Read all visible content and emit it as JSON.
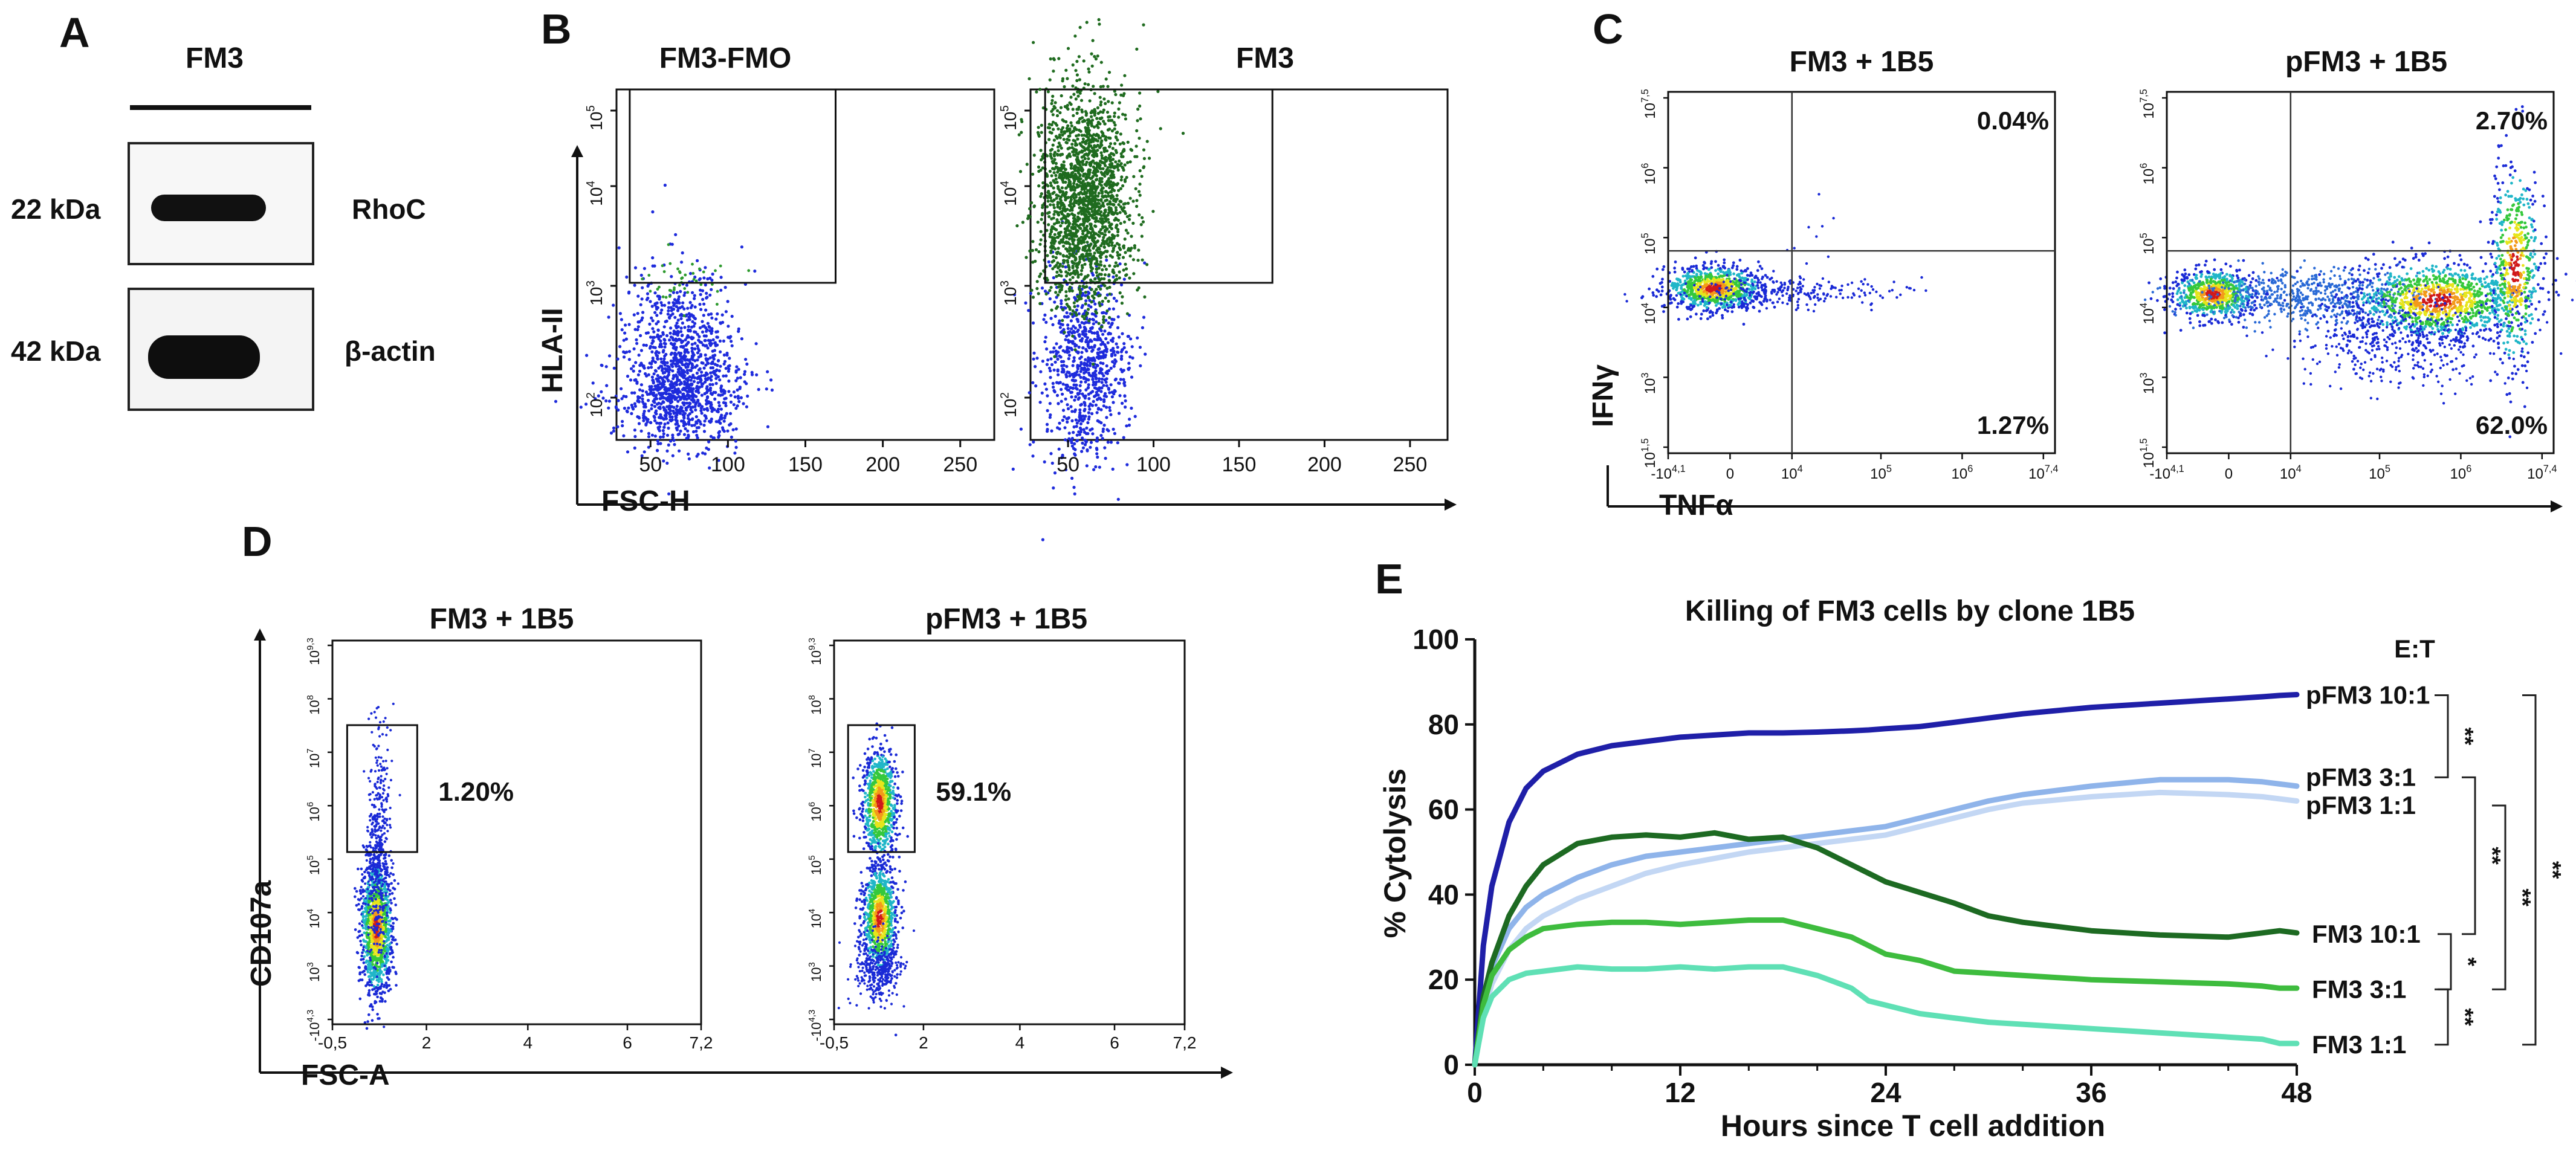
{
  "panels": {
    "A": {
      "letter": "A",
      "sample": "FM3",
      "rows": [
        {
          "size": "22 kDa",
          "protein": "RhoC"
        },
        {
          "size": "42 kDa",
          "protein": "β-actin"
        }
      ]
    },
    "B": {
      "letter": "B",
      "plots": [
        {
          "title": "FM3-FMO"
        },
        {
          "title": "FM3"
        }
      ],
      "ylabel": "HLA-II",
      "xlabel": "FSC-H",
      "xticks": [
        "50",
        "100",
        "150",
        "200",
        "250"
      ],
      "ytick_base": "10",
      "ytick_exps": [
        "2",
        "3",
        "4",
        "5"
      ]
    },
    "C": {
      "letter": "C",
      "plots": [
        {
          "title": "FM3 + 1B5",
          "q_upper_right": "0.04%",
          "q_lower_right": "1.27%"
        },
        {
          "title": "pFM3  + 1B5",
          "q_upper_right": "2.70%",
          "q_lower_right": "62.0%"
        }
      ],
      "ylabel": "IFNγ",
      "xlabel": "TNFα",
      "yticks": [
        {
          "base": "10",
          "exp": "7,5"
        },
        {
          "base": "10",
          "exp": "6"
        },
        {
          "base": "10",
          "exp": "5"
        },
        {
          "base": "10",
          "exp": "4"
        },
        {
          "base": "10",
          "exp": "3"
        },
        {
          "base": "10",
          "exp": "1,5"
        }
      ],
      "xticks": [
        {
          "base": "-10",
          "exp": "4,1"
        },
        {
          "base": "0",
          "exp": ""
        },
        {
          "base": "10",
          "exp": "4"
        },
        {
          "base": "10",
          "exp": "5"
        },
        {
          "base": "10",
          "exp": "6"
        },
        {
          "base": "10",
          "exp": "7,4"
        }
      ]
    },
    "D": {
      "letter": "D",
      "plots": [
        {
          "title": "FM3 + 1B5",
          "gate_pct": "1.20%"
        },
        {
          "title": "pFM3  + 1B5",
          "gate_pct": "59.1%"
        }
      ],
      "ylabel": "CD107a",
      "xlabel": "FSC-A",
      "xticks": [
        "-0,5",
        "2",
        "4",
        "6",
        "7,2"
      ],
      "yticks": [
        {
          "base": "10",
          "exp": "9,3"
        },
        {
          "base": "10",
          "exp": "8"
        },
        {
          "base": "10",
          "exp": "7"
        },
        {
          "base": "10",
          "exp": "6"
        },
        {
          "base": "10",
          "exp": "5"
        },
        {
          "base": "10",
          "exp": "4"
        },
        {
          "base": "10",
          "exp": "3"
        },
        {
          "base": "-10",
          "exp": "4,3"
        }
      ]
    },
    "E": {
      "letter": "E",
      "et_label": "E:T",
      "significance": [
        {
          "pair": [
            "pFM3 10:1",
            "pFM3 3:1"
          ],
          "mark": "**"
        },
        {
          "pair": [
            "pFM3 3:1",
            "FM3 10:1"
          ],
          "mark": "**"
        },
        {
          "pair": [
            "pFM3 1:1",
            "FM3 3:1"
          ],
          "mark": "**"
        },
        {
          "pair": [
            "pFM3 10:1",
            "FM3 1:1"
          ],
          "mark": "**"
        },
        {
          "pair": [
            "FM3 10:1",
            "FM3 3:1"
          ],
          "mark": "*"
        },
        {
          "pair": [
            "FM3 3:1",
            "FM3 1:1"
          ],
          "mark": "**"
        }
      ]
    }
  },
  "chart_data": {
    "type": "line",
    "title": "Killing of FM3 cells by clone 1B5",
    "xlabel": "Hours since T cell addition",
    "ylabel": "% Cytolysis",
    "xlim": [
      0,
      48
    ],
    "ylim": [
      0,
      100
    ],
    "xticks": [
      0,
      12,
      24,
      36,
      48
    ],
    "yticks": [
      0,
      20,
      40,
      60,
      80,
      100
    ],
    "x": [
      0,
      0.5,
      1,
      2,
      3,
      4,
      6,
      8,
      10,
      12,
      14,
      16,
      18,
      20,
      22,
      23,
      24,
      26,
      28,
      30,
      32,
      36,
      40,
      44,
      46,
      47,
      48
    ],
    "series": [
      {
        "name": "pFM3 10:1",
        "label": "pFM3  10:1",
        "color": "#1f1fa8",
        "values": [
          0,
          28,
          42,
          57,
          65,
          69,
          73,
          75,
          76,
          77,
          77.5,
          78,
          78,
          78.2,
          78.5,
          78.7,
          79,
          79.5,
          80.5,
          81.5,
          82.5,
          84,
          85,
          86,
          86.5,
          86.8,
          87
        ]
      },
      {
        "name": "pFM3 3:1",
        "label": "pFM3  3:1",
        "color": "#8fb4ea",
        "values": [
          0,
          15,
          23,
          32,
          37,
          40,
          44,
          47,
          49,
          50,
          51,
          52,
          53,
          54,
          55,
          55.5,
          56,
          58,
          60,
          62,
          63.5,
          65.5,
          67,
          67,
          66.5,
          66,
          65.5
        ]
      },
      {
        "name": "pFM3 1:1",
        "label": "pFM3  1:1",
        "color": "#c3d7f4",
        "values": [
          0,
          12,
          19,
          27,
          32,
          35,
          39,
          42,
          45,
          47,
          48.5,
          50,
          51,
          52,
          53,
          53.5,
          54,
          56,
          58,
          60,
          61.5,
          63,
          64,
          63.5,
          63,
          62.5,
          62
        ]
      },
      {
        "name": "FM3 10:1",
        "label": "FM3  10:1",
        "color": "#1d6a22",
        "values": [
          0,
          16,
          24,
          35,
          42,
          47,
          52,
          53.5,
          54,
          53.5,
          54.5,
          53,
          53.5,
          51,
          47,
          45,
          43,
          40.5,
          38,
          35,
          33.5,
          31.5,
          30.5,
          30,
          31,
          31.5,
          31
        ]
      },
      {
        "name": "FM3 3:1",
        "label": "FM3  3:1",
        "color": "#3ebc3e",
        "values": [
          0,
          14,
          21,
          27,
          30,
          32,
          33,
          33.5,
          33.5,
          33,
          33.5,
          34,
          34,
          32,
          30,
          28,
          26,
          24.5,
          22,
          21.5,
          21,
          20,
          19.5,
          19,
          18.5,
          18,
          18
        ]
      },
      {
        "name": "FM3 1:1",
        "label": "FM3  1:1",
        "color": "#5fe0b5",
        "values": [
          0,
          11,
          16,
          20,
          21.5,
          22,
          23,
          22.5,
          22.5,
          23,
          22.5,
          23,
          23,
          21,
          18,
          15,
          14,
          12,
          11,
          10,
          9.5,
          8.5,
          7.5,
          6.5,
          6,
          5,
          5
        ]
      }
    ]
  }
}
